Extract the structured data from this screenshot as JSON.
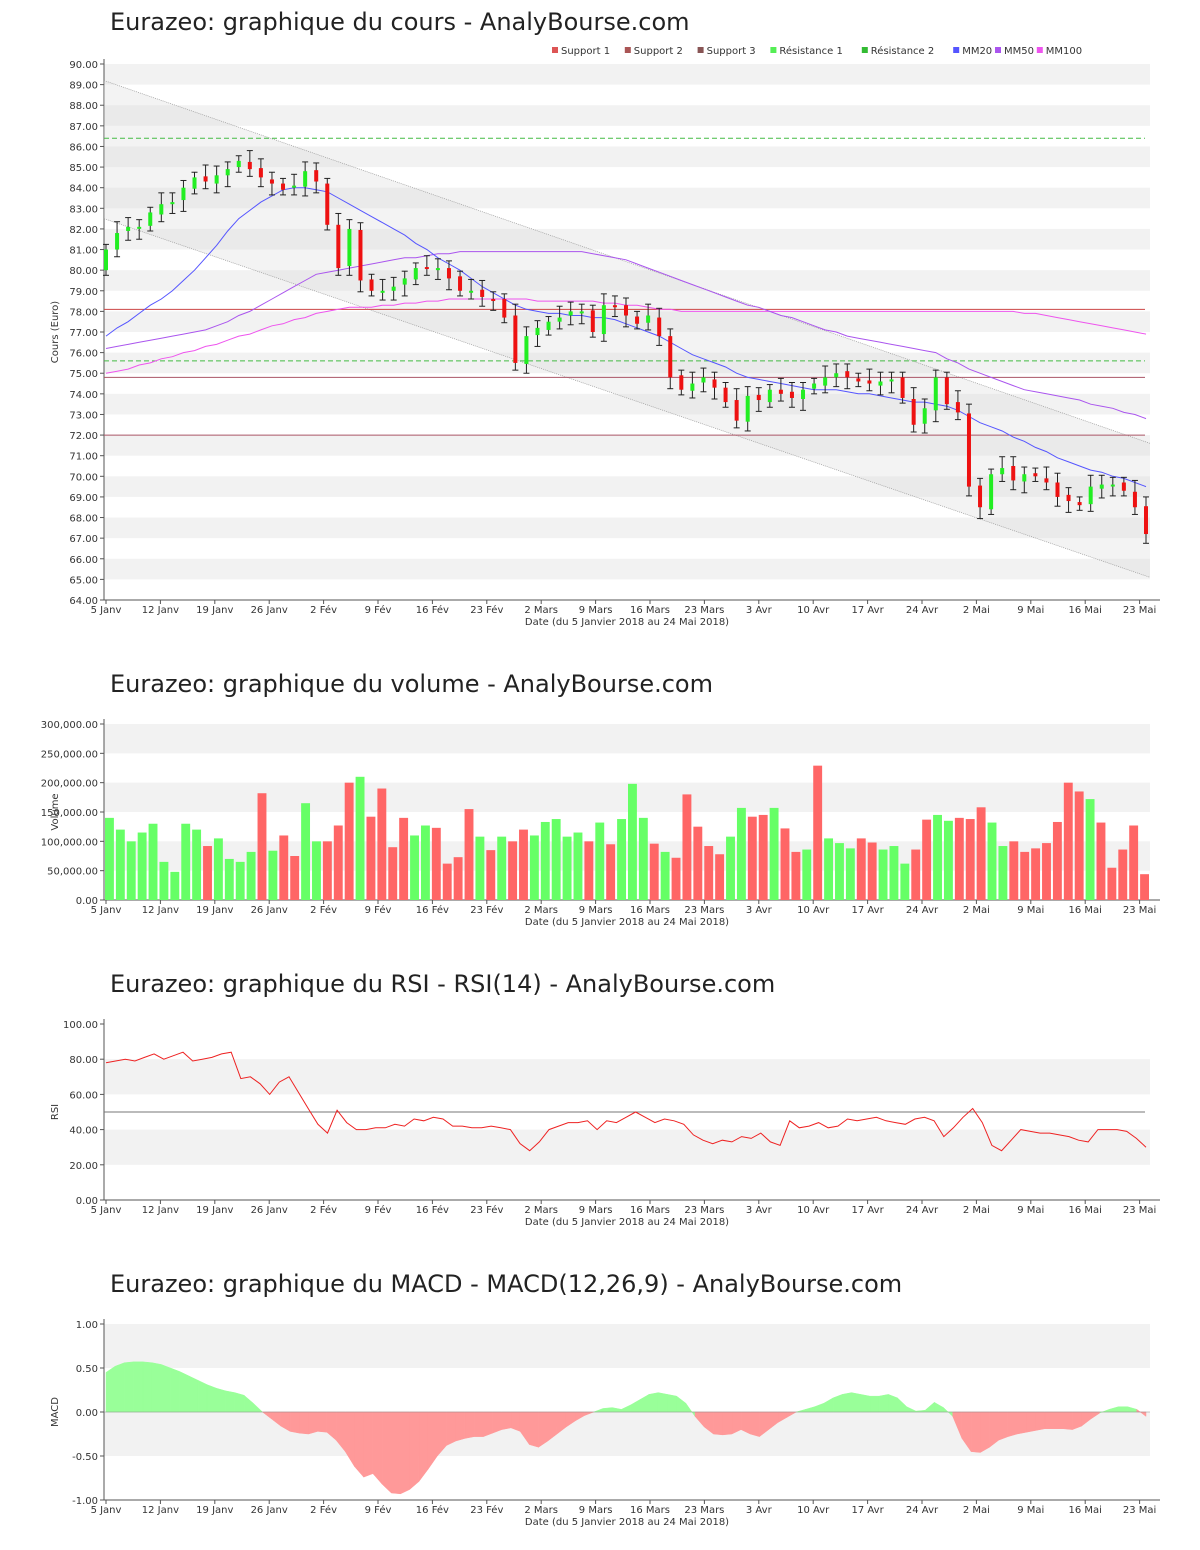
{
  "x_axis": {
    "xlabel": "Date (du 5 Janvier 2018 au 24 Mai 2018)",
    "ticks": [
      "5 Janv",
      "12 Janv",
      "19 Janv",
      "26 Janv",
      "2 Fév",
      "9 Fév",
      "16 Fév",
      "23 Fév",
      "2 Mars",
      "9 Mars",
      "16 Mars",
      "23 Mars",
      "3 Avr",
      "10 Avr",
      "17 Avr",
      "24 Avr",
      "2 Mai",
      "9 Mai",
      "16 Mai",
      "23 Mai"
    ]
  },
  "colors": {
    "up": "#66ff66",
    "down": "#ff6666",
    "up_candle": "#22ee22",
    "down_candle": "#ee1111",
    "support": "#cc3333",
    "resistance": "#33cc33",
    "mm20": "#5555ff",
    "mm50": "#aa55ee",
    "mm100": "#ee55ee",
    "rsi": "#ee2222",
    "macd_pos": "#99ff99",
    "macd_neg": "#ff9999"
  },
  "chart_data": [
    {
      "type": "candlestick",
      "title": "Eurazeo: graphique du cours - AnalyBourse.com",
      "ylabel": "Cours (Euro)",
      "ylim": [
        64,
        90
      ],
      "yticks": [
        "64.00",
        "65.00",
        "66.00",
        "67.00",
        "68.00",
        "69.00",
        "70.00",
        "71.00",
        "72.00",
        "73.00",
        "74.00",
        "75.00",
        "76.00",
        "77.00",
        "78.00",
        "79.00",
        "80.00",
        "81.00",
        "82.00",
        "83.00",
        "84.00",
        "85.00",
        "86.00",
        "87.00",
        "88.00",
        "89.00",
        "90.00"
      ],
      "legend": [
        {
          "name": "Support 1",
          "color": "#dd5555"
        },
        {
          "name": "Support 2",
          "color": "#aa5555"
        },
        {
          "name": "Support 3",
          "color": "#885555"
        },
        {
          "name": "Résistance 1",
          "color": "#55ee55"
        },
        {
          "name": "Résistance 2",
          "color": "#33bb33"
        },
        {
          "name": "MM20",
          "color": "#5555ff"
        },
        {
          "name": "MM50",
          "color": "#aa55ee"
        },
        {
          "name": "MM100",
          "color": "#ee55ee"
        }
      ],
      "support_levels": [
        78.1,
        74.8,
        72.0
      ],
      "resistance_levels": [
        86.4,
        75.6
      ],
      "close": [
        81.0,
        81.8,
        82.1,
        82.1,
        82.8,
        83.2,
        83.3,
        84.0,
        84.5,
        84.3,
        84.6,
        84.9,
        85.3,
        84.9,
        84.5,
        84.2,
        83.9,
        84.1,
        84.8,
        84.3,
        82.2,
        80.1,
        82.0,
        79.5,
        79.0,
        79.0,
        79.2,
        79.6,
        80.1,
        80.1,
        80.1,
        79.6,
        79.0,
        79.0,
        78.7,
        78.6,
        77.7,
        75.5,
        76.8,
        77.2,
        77.5,
        77.7,
        78.0,
        78.0,
        77.0,
        78.3,
        78.2,
        77.8,
        77.4,
        77.8,
        76.8,
        74.8,
        74.2,
        74.5,
        74.8,
        74.3,
        73.6,
        72.7,
        73.9,
        73.7,
        74.2,
        74.0,
        73.8,
        74.2,
        74.5,
        74.8,
        75.0,
        74.8,
        74.6,
        74.5,
        74.6,
        74.7,
        73.8,
        72.5,
        73.3,
        74.8,
        73.5,
        73.1,
        69.5,
        68.5,
        70.1,
        70.4,
        69.8,
        70.1,
        70.0,
        69.7,
        69.0,
        68.8,
        68.6,
        69.5,
        69.6,
        69.6,
        69.3,
        68.5,
        67.2
      ],
      "ma20": [
        76.8,
        77.2,
        77.5,
        77.9,
        78.3,
        78.6,
        79.0,
        79.5,
        80.0,
        80.6,
        81.2,
        81.9,
        82.5,
        82.9,
        83.3,
        83.6,
        83.9,
        84.0,
        84.0,
        83.9,
        83.8,
        83.5,
        83.2,
        82.9,
        82.6,
        82.3,
        82.0,
        81.7,
        81.3,
        81.0,
        80.6,
        80.3,
        80.0,
        79.6,
        79.2,
        78.9,
        78.6,
        78.3,
        78.1,
        78.0,
        77.9,
        77.9,
        77.8,
        77.8,
        77.7,
        77.7,
        77.6,
        77.4,
        77.2,
        77.0,
        76.8,
        76.5,
        76.2,
        75.9,
        75.7,
        75.5,
        75.3,
        75.0,
        74.8,
        74.7,
        74.6,
        74.5,
        74.4,
        74.3,
        74.2,
        74.2,
        74.2,
        74.1,
        74.0,
        74.0,
        73.9,
        73.8,
        73.7,
        73.6,
        73.6,
        73.5,
        73.4,
        73.2,
        72.9,
        72.6,
        72.4,
        72.2,
        71.9,
        71.7,
        71.4,
        71.2,
        70.9,
        70.7,
        70.5,
        70.3,
        70.2,
        70.0,
        69.9,
        69.7,
        69.5
      ],
      "ma50": [
        76.2,
        76.3,
        76.4,
        76.5,
        76.6,
        76.7,
        76.8,
        76.9,
        77.0,
        77.1,
        77.3,
        77.5,
        77.8,
        78.0,
        78.3,
        78.6,
        78.9,
        79.2,
        79.5,
        79.8,
        79.9,
        80.0,
        80.1,
        80.2,
        80.3,
        80.4,
        80.5,
        80.6,
        80.6,
        80.7,
        80.8,
        80.8,
        80.9,
        80.9,
        80.9,
        80.9,
        80.9,
        80.9,
        80.9,
        80.9,
        80.9,
        80.9,
        80.9,
        80.9,
        80.8,
        80.7,
        80.6,
        80.5,
        80.3,
        80.1,
        79.9,
        79.7,
        79.5,
        79.3,
        79.1,
        78.9,
        78.7,
        78.5,
        78.3,
        78.2,
        78.0,
        77.8,
        77.7,
        77.5,
        77.3,
        77.1,
        77.0,
        76.8,
        76.7,
        76.6,
        76.5,
        76.4,
        76.3,
        76.2,
        76.1,
        76.0,
        75.7,
        75.5,
        75.2,
        75.0,
        74.8,
        74.6,
        74.4,
        74.2,
        74.1,
        74.0,
        73.9,
        73.8,
        73.7,
        73.5,
        73.4,
        73.3,
        73.1,
        73.0,
        72.8
      ],
      "ma100": [
        75.0,
        75.1,
        75.2,
        75.4,
        75.5,
        75.7,
        75.8,
        76.0,
        76.1,
        76.3,
        76.4,
        76.6,
        76.8,
        76.9,
        77.1,
        77.3,
        77.4,
        77.6,
        77.7,
        77.9,
        78.0,
        78.1,
        78.2,
        78.2,
        78.2,
        78.3,
        78.3,
        78.4,
        78.4,
        78.5,
        78.5,
        78.6,
        78.6,
        78.6,
        78.6,
        78.6,
        78.6,
        78.6,
        78.6,
        78.5,
        78.5,
        78.5,
        78.5,
        78.5,
        78.5,
        78.4,
        78.4,
        78.3,
        78.3,
        78.2,
        78.1,
        78.1,
        78.0,
        78.0,
        78.0,
        78.0,
        78.0,
        78.0,
        78.0,
        78.0,
        78.0,
        78.0,
        78.0,
        78.0,
        78.0,
        78.0,
        78.0,
        78.0,
        78.0,
        78.0,
        78.0,
        78.0,
        78.0,
        78.0,
        78.0,
        78.0,
        78.0,
        78.0,
        78.0,
        78.0,
        78.0,
        78.0,
        78.0,
        77.9,
        77.9,
        77.8,
        77.7,
        77.6,
        77.5,
        77.4,
        77.3,
        77.2,
        77.1,
        77.0,
        76.9
      ],
      "channel_upper": [
        89.2,
        71.6
      ],
      "channel_lower": [
        82.5,
        65.1
      ]
    },
    {
      "type": "bar",
      "title": "Eurazeo: graphique du volume - AnalyBourse.com",
      "ylabel": "Volume",
      "ylim": [
        0,
        300000
      ],
      "yticks": [
        "0.00",
        "50,000.00",
        "100,000.00",
        "150,000.00",
        "200,000.00",
        "250,000.00",
        "300,000.00"
      ],
      "values": [
        140000,
        120000,
        100000,
        115000,
        130000,
        65000,
        48000,
        130000,
        120000,
        92000,
        105000,
        70000,
        65000,
        82000,
        182000,
        84000,
        110000,
        75000,
        165000,
        100000,
        100000,
        127000,
        200000,
        210000,
        142000,
        190000,
        90000,
        140000,
        110000,
        127000,
        123000,
        62000,
        73000,
        155000,
        108000,
        85000,
        108000,
        100000,
        120000,
        110000,
        133000,
        138000,
        108000,
        115000,
        100000,
        132000,
        95000,
        138000,
        198000,
        140000,
        96000,
        82000,
        72000,
        180000,
        125000,
        92000,
        78000,
        108000,
        157000,
        142000,
        145000,
        157000,
        122000,
        82000,
        86000,
        229000,
        105000,
        97000,
        88000,
        105000,
        98000,
        86000,
        92000,
        62000,
        86000,
        137000,
        145000,
        135000,
        140000,
        138000,
        158000,
        132000,
        92000,
        100000,
        82000,
        88000,
        97000,
        133000,
        200000,
        185000,
        172000,
        132000,
        55000,
        86000,
        127000,
        44000
      ],
      "up": [
        1,
        1,
        1,
        1,
        1,
        1,
        1,
        1,
        1,
        0,
        1,
        1,
        1,
        1,
        0,
        1,
        0,
        0,
        1,
        1,
        0,
        0,
        0,
        1,
        0,
        0,
        0,
        0,
        1,
        1,
        0,
        0,
        0,
        0,
        1,
        0,
        1,
        0,
        0,
        1,
        1,
        1,
        1,
        1,
        0,
        1,
        0,
        1,
        1,
        1,
        0,
        1,
        0,
        0,
        0,
        0,
        0,
        1,
        1,
        0,
        0,
        1,
        0,
        0,
        1,
        0,
        1,
        1,
        1,
        0,
        0,
        1,
        1,
        1,
        0,
        0,
        1,
        1,
        0,
        0,
        0,
        1,
        1,
        0,
        0,
        0,
        0,
        0,
        0,
        0,
        1,
        0,
        0,
        0,
        0,
        0
      ]
    },
    {
      "type": "line",
      "title": "Eurazeo: graphique du RSI - RSI(14) - AnalyBourse.com",
      "ylabel": "RSI",
      "ylim": [
        0,
        100
      ],
      "yticks": [
        "0.00",
        "20.00",
        "40.00",
        "60.00",
        "80.00",
        "100.00"
      ],
      "reference_line": 50,
      "values": [
        78,
        79,
        80,
        79,
        81,
        83,
        80,
        82,
        84,
        79,
        80,
        81,
        83,
        84,
        69,
        70,
        66,
        60,
        67,
        70,
        61,
        52,
        43,
        38,
        51,
        44,
        40,
        40,
        41,
        41,
        43,
        42,
        46,
        45,
        47,
        46,
        42,
        42,
        41,
        41,
        42,
        41,
        40,
        32,
        28,
        33,
        40,
        42,
        44,
        44,
        45,
        40,
        45,
        44,
        47,
        50,
        47,
        44,
        46,
        45,
        43,
        37,
        34,
        32,
        34,
        33,
        36,
        35,
        38,
        33,
        31,
        45,
        41,
        42,
        44,
        41,
        42,
        46,
        45,
        46,
        47,
        45,
        44,
        43,
        46,
        47,
        45,
        36,
        41,
        47,
        52,
        44,
        31,
        28,
        34,
        40
      ],
      "rsi_tail": [
        39,
        38,
        38,
        37,
        36,
        34,
        33,
        40,
        40,
        40,
        39,
        35,
        30
      ]
    },
    {
      "type": "area",
      "title": "Eurazeo: graphique du MACD - MACD(12,26,9) - AnalyBourse.com",
      "ylabel": "MACD",
      "ylim": [
        -1,
        1
      ],
      "yticks": [
        "-1.00",
        "-0.50",
        "0.00",
        "0.50",
        "1.00"
      ],
      "values": [
        0.45,
        0.52,
        0.56,
        0.57,
        0.57,
        0.56,
        0.54,
        0.5,
        0.46,
        0.41,
        0.36,
        0.31,
        0.27,
        0.24,
        0.22,
        0.19,
        0.1,
        0.0,
        -0.08,
        -0.16,
        -0.22,
        -0.24,
        -0.25,
        -0.22,
        -0.23,
        -0.32,
        -0.45,
        -0.62,
        -0.74,
        -0.7,
        -0.82,
        -0.92,
        -0.93,
        -0.88,
        -0.79,
        -0.65,
        -0.5,
        -0.38,
        -0.33,
        -0.3,
        -0.28,
        -0.28,
        -0.24,
        -0.2,
        -0.18,
        -0.22,
        -0.37,
        -0.4,
        -0.33,
        -0.25,
        -0.17,
        -0.1,
        -0.04,
        0.0,
        0.04,
        0.05,
        0.03,
        0.08,
        0.14,
        0.2,
        0.22,
        0.2,
        0.18,
        0.1,
        -0.05,
        -0.17,
        -0.25,
        -0.26,
        -0.25,
        -0.2,
        -0.25,
        -0.28,
        -0.2,
        -0.12,
        -0.06,
        0.0,
        0.03,
        0.06,
        0.1,
        0.16,
        0.2,
        0.22,
        0.2,
        0.18,
        0.18,
        0.2,
        0.16,
        0.06,
        0.01,
        0.02,
        0.11,
        0.05,
        -0.05,
        -0.3,
        -0.45,
        -0.46,
        -0.4,
        -0.32,
        -0.28,
        -0.25,
        -0.23,
        -0.21,
        -0.19,
        -0.19,
        -0.19,
        -0.2,
        -0.16,
        -0.08,
        -0.01,
        0.03,
        0.06,
        0.06,
        0.03,
        -0.05
      ]
    }
  ]
}
